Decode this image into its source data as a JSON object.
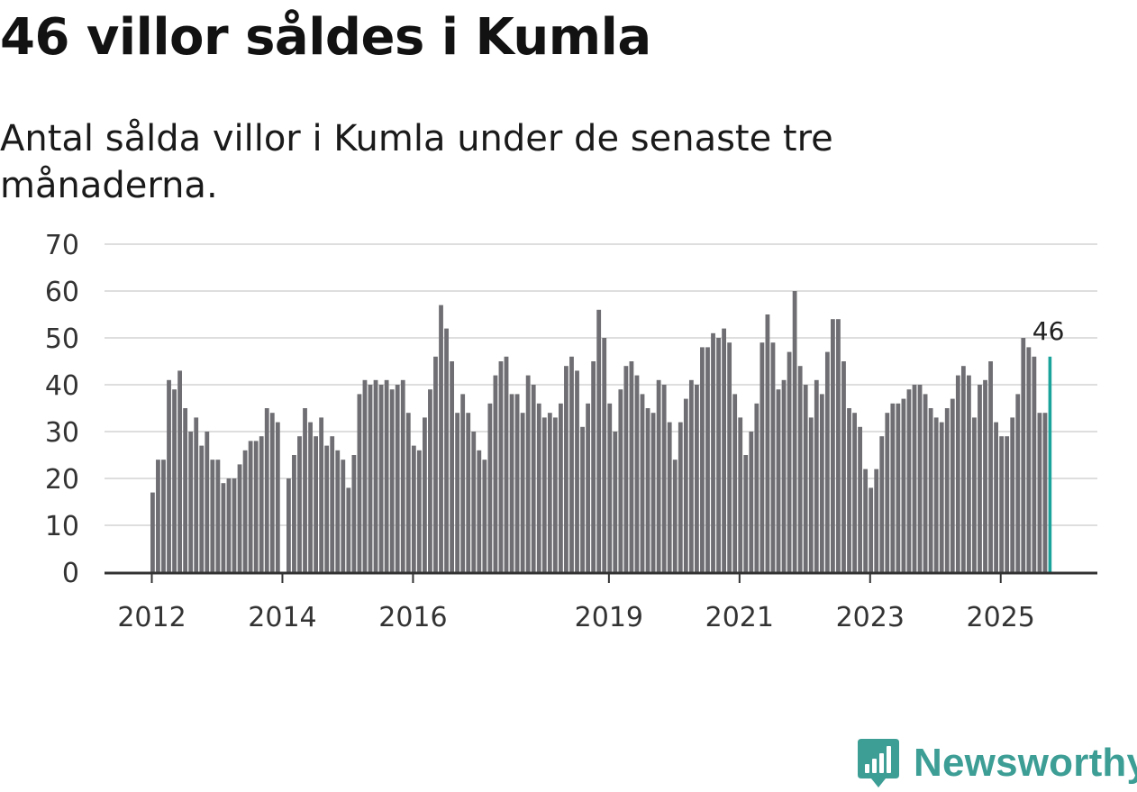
{
  "title": "46 villor såldes i Kumla",
  "subtitle": "Antal sålda villor i Kumla under de senaste tre månaderna.",
  "brand": {
    "name": "Newsworthy",
    "icon": "bar-chart-badge-icon",
    "color": "#3d9e96"
  },
  "colors": {
    "bar": "#6e6e73",
    "highlight": "#1aa39b",
    "grid": "#dedede",
    "axis": "#333333"
  },
  "chart_data": {
    "type": "bar",
    "ylim": [
      0,
      70
    ],
    "yticks": [
      0,
      10,
      20,
      30,
      40,
      50,
      60,
      70
    ],
    "xticks": [
      {
        "label": "2012",
        "index": 0
      },
      {
        "label": "2014",
        "index": 24
      },
      {
        "label": "2016",
        "index": 48
      },
      {
        "label": "2019",
        "index": 84
      },
      {
        "label": "2021",
        "index": 108
      },
      {
        "label": "2023",
        "index": 132
      },
      {
        "label": "2025",
        "index": 156
      }
    ],
    "highlight": {
      "index": 165,
      "value": 46,
      "label": "46"
    },
    "values": [
      17,
      24,
      24,
      41,
      39,
      43,
      35,
      30,
      33,
      27,
      30,
      24,
      24,
      19,
      20,
      20,
      23,
      26,
      28,
      28,
      29,
      35,
      34,
      32,
      0,
      20,
      25,
      29,
      35,
      32,
      29,
      33,
      27,
      29,
      26,
      24,
      18,
      25,
      38,
      41,
      40,
      41,
      40,
      41,
      39,
      40,
      41,
      34,
      27,
      26,
      33,
      39,
      46,
      57,
      52,
      45,
      34,
      38,
      34,
      30,
      26,
      24,
      36,
      42,
      45,
      46,
      38,
      38,
      34,
      42,
      40,
      36,
      33,
      34,
      33,
      36,
      44,
      46,
      43,
      31,
      36,
      45,
      56,
      50,
      36,
      30,
      39,
      44,
      45,
      42,
      38,
      35,
      34,
      41,
      40,
      32,
      24,
      32,
      37,
      41,
      40,
      48,
      48,
      51,
      50,
      52,
      49,
      38,
      33,
      25,
      30,
      36,
      49,
      55,
      49,
      39,
      41,
      47,
      60,
      44,
      40,
      33,
      41,
      38,
      47,
      54,
      54,
      45,
      35,
      34,
      31,
      22,
      18,
      22,
      29,
      34,
      36,
      36,
      37,
      39,
      40,
      40,
      38,
      35,
      33,
      32,
      35,
      37,
      42,
      44,
      42,
      33,
      40,
      41,
      45,
      32,
      29,
      29,
      33,
      38,
      50,
      48,
      46,
      34,
      34,
      46
    ]
  }
}
